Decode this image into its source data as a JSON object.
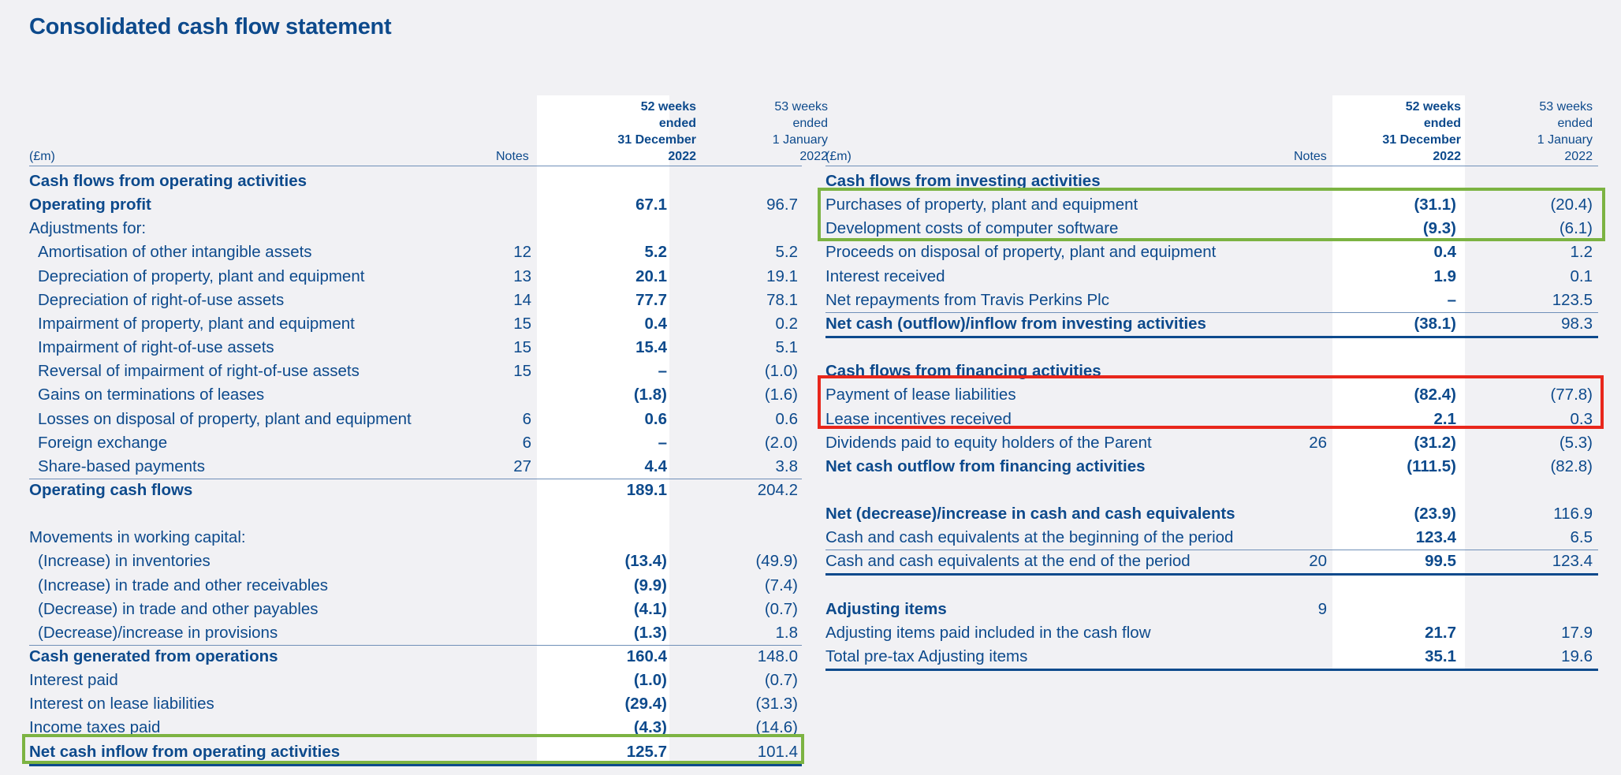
{
  "title": "Consolidated cash flow statement",
  "colors": {
    "text": "#0d4a8c",
    "current_year_bg": "#ffffff",
    "page_bg": "#f1f1f4",
    "highlight_green": "#7cb342",
    "highlight_red": "#e8271c"
  },
  "left": {
    "unit": "(£m)",
    "notes_header": "Notes",
    "col_current": [
      "52 weeks",
      "ended",
      "31 December",
      "2022"
    ],
    "col_prior": [
      "53 weeks",
      "ended",
      "1 January",
      "2022"
    ],
    "rows": [
      {
        "label": "Cash flows from operating activities",
        "note": "",
        "v1": "",
        "v2": ""
      },
      {
        "label": "Operating profit",
        "note": "",
        "v1": "67.1",
        "v2": "96.7"
      },
      {
        "label": "Adjustments for:",
        "note": "",
        "v1": "",
        "v2": ""
      },
      {
        "label": "Amortisation of other intangible assets",
        "note": "12",
        "v1": "5.2",
        "v2": "5.2"
      },
      {
        "label": "Depreciation of property, plant and equipment",
        "note": "13",
        "v1": "20.1",
        "v2": "19.1"
      },
      {
        "label": "Depreciation of right-of-use assets",
        "note": "14",
        "v1": "77.7",
        "v2": "78.1"
      },
      {
        "label": "Impairment of property, plant and equipment",
        "note": "15",
        "v1": "0.4",
        "v2": "0.2"
      },
      {
        "label": "Impairment of right-of-use assets",
        "note": "15",
        "v1": "15.4",
        "v2": "5.1"
      },
      {
        "label": "Reversal of impairment of right-of-use assets",
        "note": "15",
        "v1": "–",
        "v2": "(1.0)"
      },
      {
        "label": "Gains on terminations of leases",
        "note": "",
        "v1": "(1.8)",
        "v2": "(1.6)"
      },
      {
        "label": "Losses on disposal of property, plant and equipment",
        "note": "6",
        "v1": "0.6",
        "v2": "0.6"
      },
      {
        "label": "Foreign exchange",
        "note": "6",
        "v1": "–",
        "v2": "(2.0)"
      },
      {
        "label": "Share-based payments",
        "note": "27",
        "v1": "4.4",
        "v2": "3.8"
      },
      {
        "label": "Operating cash flows",
        "note": "",
        "v1": "189.1",
        "v2": "204.2"
      },
      {
        "label": "",
        "note": "",
        "v1": "",
        "v2": ""
      },
      {
        "label": "Movements in working capital:",
        "note": "",
        "v1": "",
        "v2": ""
      },
      {
        "label": "(Increase) in inventories",
        "note": "",
        "v1": "(13.4)",
        "v2": "(49.9)"
      },
      {
        "label": "(Increase) in trade and other receivables",
        "note": "",
        "v1": "(9.9)",
        "v2": "(7.4)"
      },
      {
        "label": "(Decrease) in trade and other payables",
        "note": "",
        "v1": "(4.1)",
        "v2": "(0.7)"
      },
      {
        "label": "(Decrease)/increase in provisions",
        "note": "",
        "v1": "(1.3)",
        "v2": "1.8"
      },
      {
        "label": "Cash generated from operations",
        "note": "",
        "v1": "160.4",
        "v2": "148.0"
      },
      {
        "label": "Interest paid",
        "note": "",
        "v1": "(1.0)",
        "v2": "(0.7)"
      },
      {
        "label": "Interest on lease liabilities",
        "note": "",
        "v1": "(29.4)",
        "v2": "(31.3)"
      },
      {
        "label": "Income taxes paid",
        "note": "",
        "v1": "(4.3)",
        "v2": "(14.6)"
      },
      {
        "label": "Net cash inflow from operating activities",
        "note": "",
        "v1": "125.7",
        "v2": "101.4"
      }
    ]
  },
  "right": {
    "unit": "(£m)",
    "notes_header": "Notes",
    "col_current": [
      "52 weeks",
      "ended",
      "31 December",
      "2022"
    ],
    "col_prior": [
      "53 weeks",
      "ended",
      "1 January",
      "2022"
    ],
    "rows": [
      {
        "label": "Cash flows from investing activities",
        "note": "",
        "v1": "",
        "v2": ""
      },
      {
        "label": "Purchases of property, plant and equipment",
        "note": "",
        "v1": "(31.1)",
        "v2": "(20.4)"
      },
      {
        "label": "Development costs of computer software",
        "note": "",
        "v1": "(9.3)",
        "v2": "(6.1)"
      },
      {
        "label": "Proceeds on disposal of property, plant and equipment",
        "note": "",
        "v1": "0.4",
        "v2": "1.2"
      },
      {
        "label": "Interest received",
        "note": "",
        "v1": "1.9",
        "v2": "0.1"
      },
      {
        "label": "Net repayments from Travis Perkins Plc",
        "note": "",
        "v1": "–",
        "v2": "123.5"
      },
      {
        "label": "Net cash (outflow)/inflow from investing activities",
        "note": "",
        "v1": "(38.1)",
        "v2": "98.3"
      },
      {
        "label": "",
        "note": "",
        "v1": "",
        "v2": ""
      },
      {
        "label": "Cash flows from financing activities",
        "note": "",
        "v1": "",
        "v2": ""
      },
      {
        "label": "Payment of lease liabilities",
        "note": "",
        "v1": "(82.4)",
        "v2": "(77.8)"
      },
      {
        "label": "Lease incentives received",
        "note": "",
        "v1": "2.1",
        "v2": "0.3"
      },
      {
        "label": "Dividends paid to equity holders of the Parent",
        "note": "26",
        "v1": "(31.2)",
        "v2": "(5.3)"
      },
      {
        "label": "Net cash outflow from financing activities",
        "note": "",
        "v1": "(111.5)",
        "v2": "(82.8)"
      },
      {
        "label": "",
        "note": "",
        "v1": "",
        "v2": ""
      },
      {
        "label": "Net (decrease)/increase in cash and cash equivalents",
        "note": "",
        "v1": "(23.9)",
        "v2": "116.9"
      },
      {
        "label": "Cash and cash equivalents at the beginning of the period",
        "note": "",
        "v1": "123.4",
        "v2": "6.5"
      },
      {
        "label": "Cash and cash equivalents at the end of the period",
        "note": "20",
        "v1": "99.5",
        "v2": "123.4"
      },
      {
        "label": "",
        "note": "",
        "v1": "",
        "v2": ""
      },
      {
        "label": "Adjusting items",
        "note": "9",
        "v1": "",
        "v2": ""
      },
      {
        "label": "Adjusting items paid included in the cash flow",
        "note": "",
        "v1": "21.7",
        "v2": "17.9"
      },
      {
        "label": "Total pre-tax Adjusting items",
        "note": "",
        "v1": "35.1",
        "v2": "19.6"
      }
    ]
  }
}
